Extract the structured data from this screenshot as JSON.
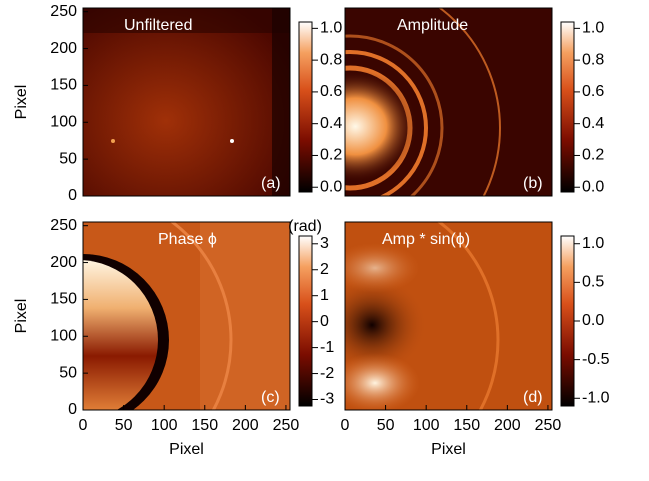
{
  "chart_data": [
    {
      "type": "image",
      "title": "Unfiltered",
      "panel_label": "(a)",
      "y_label": "Pixel",
      "xlim": [
        0,
        255
      ],
      "ylim": [
        0,
        255
      ],
      "yticks": [
        0,
        50,
        100,
        150,
        200,
        250
      ],
      "colorbar": {
        "lim": [
          -0.03,
          1.04
        ],
        "ticks": [
          {
            "value": 0,
            "label": "0.0"
          },
          {
            "value": 0.2,
            "label": "0.2"
          },
          {
            "value": 0.4,
            "label": "0.4"
          },
          {
            "value": 0.6,
            "label": "0.6"
          },
          {
            "value": 0.8,
            "label": "0.8"
          },
          {
            "value": 1,
            "label": "1.0"
          }
        ]
      }
    },
    {
      "type": "image",
      "title": "Amplitude",
      "panel_label": "(b)",
      "xlim": [
        0,
        255
      ],
      "ylim": [
        0,
        255
      ],
      "colorbar": {
        "lim": [
          -0.03,
          1.04
        ],
        "ticks": [
          {
            "value": 0,
            "label": "0.0"
          },
          {
            "value": 0.2,
            "label": "0.2"
          },
          {
            "value": 0.4,
            "label": "0.4"
          },
          {
            "value": 0.6,
            "label": "0.6"
          },
          {
            "value": 0.8,
            "label": "0.8"
          },
          {
            "value": 1,
            "label": "1.0"
          }
        ]
      }
    },
    {
      "type": "image",
      "title": "Phase ϕ",
      "panel_label": "(c)",
      "x_label": "Pixel",
      "y_label": "Pixel",
      "xlim": [
        0,
        255
      ],
      "ylim": [
        0,
        255
      ],
      "xticks": [
        0,
        50,
        100,
        150,
        200,
        250
      ],
      "yticks": [
        0,
        50,
        100,
        150,
        200,
        250
      ],
      "colorbar": {
        "label": "(rad)",
        "lim": [
          -3.25,
          3.3
        ],
        "ticks": [
          -3,
          -2,
          -1,
          0,
          1,
          2,
          3
        ]
      }
    },
    {
      "type": "image",
      "title": "Amp * sin(ϕ)",
      "panel_label": "(d)",
      "x_label": "Pixel",
      "xlim": [
        0,
        255
      ],
      "ylim": [
        0,
        255
      ],
      "xticks": [
        0,
        50,
        100,
        150,
        200,
        250
      ],
      "colorbar": {
        "lim": [
          -1.1,
          1.1
        ],
        "ticks": [
          {
            "value": -1,
            "label": "-1.0"
          },
          {
            "value": -0.5,
            "label": "-0.5"
          },
          {
            "value": 0,
            "label": "0.0"
          },
          {
            "value": 0.5,
            "label": "0.5"
          },
          {
            "value": 1,
            "label": "1.0"
          }
        ]
      }
    }
  ]
}
